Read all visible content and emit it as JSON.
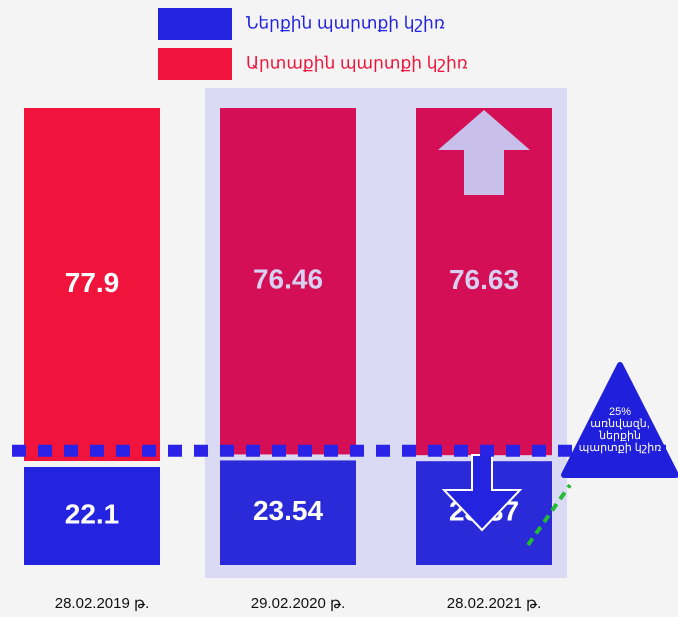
{
  "chart_data": {
    "type": "stacked_bar",
    "categories": [
      "28.02.2019 թ.",
      "29.02.2020 թ.",
      "28.02.2021 թ."
    ],
    "series": [
      {
        "name": "Ներքին պարտքի կշիռ",
        "color": "#2323e0",
        "values": [
          22.1,
          23.54,
          23.37
        ]
      },
      {
        "name": "Արտաքին պարտքի կշիռ",
        "color": "#f0143c",
        "values": [
          77.9,
          76.46,
          76.63
        ]
      }
    ],
    "ylim": [
      0,
      100
    ],
    "threshold": {
      "value": 25,
      "lines": [
        "25%",
        "առնվազն,",
        "ներքին",
        "պարտքի կշիռ"
      ]
    }
  }
}
